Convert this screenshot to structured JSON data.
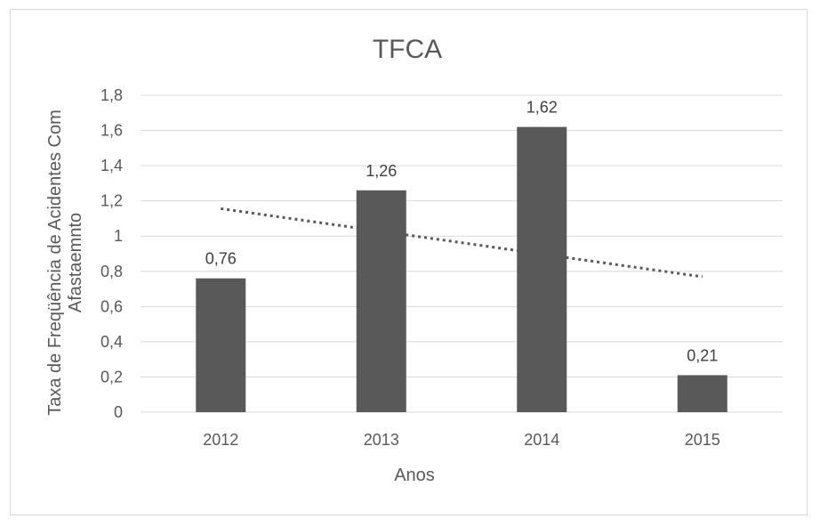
{
  "chart_data": {
    "type": "bar",
    "title": "TFCA",
    "xlabel": "Anos",
    "ylabel_lines": [
      "Taxa de Freqüência de Acidentes Com",
      "Afastaemnto"
    ],
    "categories": [
      "2012",
      "2013",
      "2014",
      "2015"
    ],
    "values": [
      0.76,
      1.26,
      1.62,
      0.21
    ],
    "data_labels": [
      "0,76",
      "1,26",
      "1,62",
      "0,21"
    ],
    "ylim": [
      0,
      1.8
    ],
    "yticks": [
      0,
      0.2,
      0.4,
      0.6,
      0.8,
      1,
      1.2,
      1.4,
      1.6,
      1.8
    ],
    "ytick_labels": [
      "0",
      "0,2",
      "0,4",
      "0,6",
      "0,8",
      "1",
      "1,2",
      "1,4",
      "1,6",
      "1,8"
    ],
    "trendline": {
      "type": "linear",
      "style": "dotted"
    },
    "grid": true,
    "legend": "none",
    "colors": {
      "bar": "#595959",
      "trend": "#595959",
      "grid": "#d9d9d9",
      "text": "#595959"
    }
  }
}
